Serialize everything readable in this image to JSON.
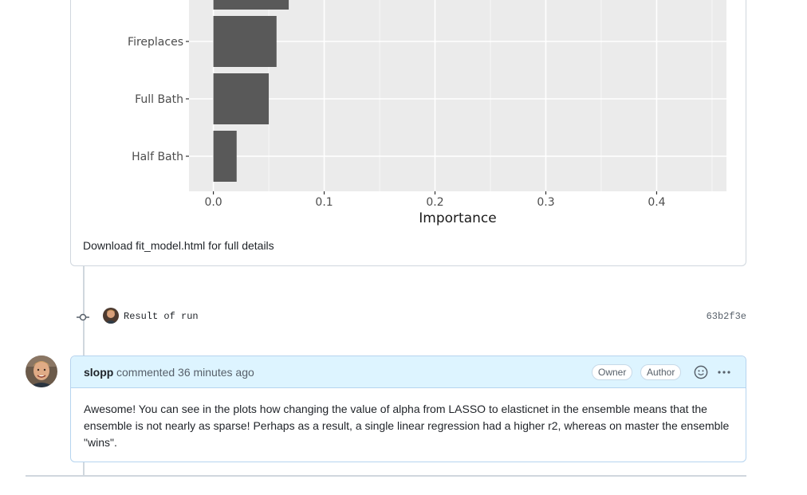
{
  "chart_data": {
    "type": "bar",
    "orientation": "horizontal",
    "categories": [
      "Fireplaces",
      "Full Bath",
      "Half Bath"
    ],
    "partial_top_bar_value": 0.068,
    "values": [
      0.057,
      0.05,
      0.021
    ],
    "xlabel": "Importance",
    "xlim": [
      -0.022,
      0.463
    ],
    "xticks": [
      "0.0",
      "0.1",
      "0.2",
      "0.3",
      "0.4"
    ],
    "xtick_values": [
      0.0,
      0.1,
      0.2,
      0.3,
      0.4
    ],
    "grid": true,
    "panel_color": "#ebebeb",
    "bar_color": "#595959"
  },
  "download_text": "Download fit_model.html for full details",
  "commit": {
    "message": "Result of run",
    "sha": "63b2f3e"
  },
  "comment": {
    "author": "slopp",
    "meta": "commented 36 minutes ago",
    "badges": [
      "Owner",
      "Author"
    ],
    "body": "Awesome! You can see in the plots how changing the value of alpha from LASSO to elasticnet in the ensemble means that the ensemble is not nearly as sparse! Perhaps as a result, a single linear regression had a higher r2, whereas on master the ensemble \"wins\"."
  },
  "colors": {
    "comment_header_bg": "#ddf4ff",
    "comment_border": "#b6d4ef",
    "timeline": "#d0d7de"
  },
  "icons": [
    "commit-node-icon",
    "smiley-icon",
    "kebab-horizontal-icon"
  ]
}
